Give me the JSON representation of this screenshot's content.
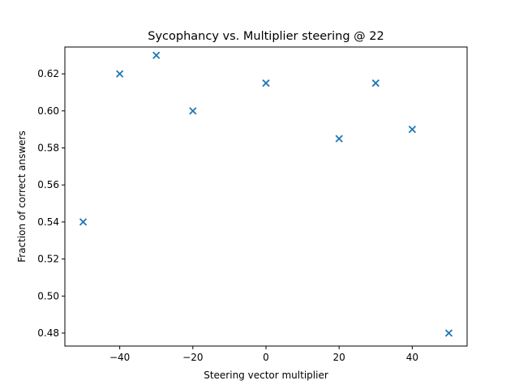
{
  "chart_data": {
    "type": "scatter",
    "title": "Sycophancy vs. Multiplier steering @ 22",
    "xlabel": "Steering vector multiplier",
    "ylabel": "Fraction of correct answers",
    "xlim": [
      -55,
      55
    ],
    "ylim": [
      0.473,
      0.6345
    ],
    "x_ticks": [
      -40,
      -20,
      0,
      20,
      40
    ],
    "y_ticks": [
      0.48,
      0.5,
      0.52,
      0.54,
      0.56,
      0.58,
      0.6,
      0.62
    ],
    "x_tick_labels": [
      "−40",
      "−20",
      "0",
      "20",
      "40"
    ],
    "y_tick_labels": [
      "0.48",
      "0.50",
      "0.52",
      "0.54",
      "0.56",
      "0.58",
      "0.60",
      "0.62"
    ],
    "marker": "x",
    "color": "#1f77b4",
    "grid": false,
    "points": [
      {
        "x": -50,
        "y": 0.54
      },
      {
        "x": -40,
        "y": 0.62
      },
      {
        "x": -30,
        "y": 0.63
      },
      {
        "x": -20,
        "y": 0.6
      },
      {
        "x": 0,
        "y": 0.615
      },
      {
        "x": 20,
        "y": 0.585
      },
      {
        "x": 30,
        "y": 0.615
      },
      {
        "x": 40,
        "y": 0.59
      },
      {
        "x": 50,
        "y": 0.48
      }
    ]
  }
}
